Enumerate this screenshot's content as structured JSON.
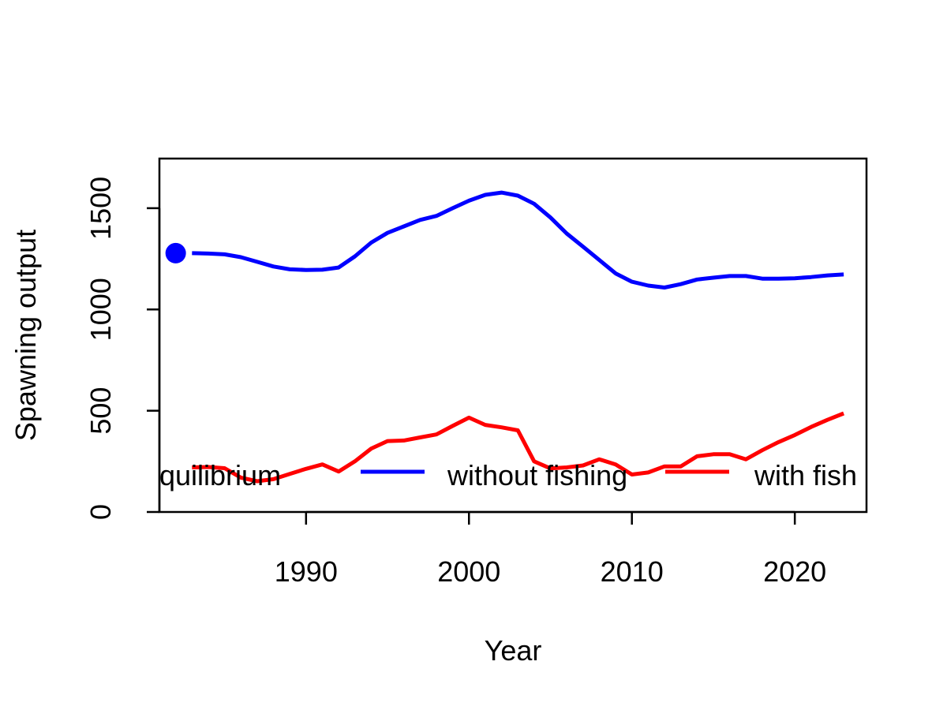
{
  "chart_data": {
    "type": "line",
    "title": "",
    "xlabel": "Year",
    "ylabel": "Spawning output",
    "xlim": [
      1981,
      2024.4
    ],
    "ylim": [
      0,
      1745
    ],
    "x_ticks": [
      1990,
      2000,
      2010,
      2020
    ],
    "y_ticks": [
      0,
      500,
      1000,
      1500
    ],
    "grid": false,
    "legend_position": "bottom",
    "series": [
      {
        "name": "without fishing",
        "color": "#0000FF",
        "x": [
          1983,
          1984,
          1985,
          1986,
          1987,
          1988,
          1989,
          1990,
          1991,
          1992,
          1993,
          1994,
          1995,
          1996,
          1997,
          1998,
          1999,
          2000,
          2001,
          2002,
          2003,
          2004,
          2005,
          2006,
          2007,
          2008,
          2009,
          2010,
          2011,
          2012,
          2013,
          2014,
          2015,
          2016,
          2017,
          2018,
          2019,
          2020,
          2021,
          2022,
          2023
        ],
        "values": [
          1278,
          1276,
          1272,
          1258,
          1235,
          1212,
          1198,
          1195,
          1196,
          1207,
          1262,
          1330,
          1378,
          1410,
          1442,
          1462,
          1500,
          1537,
          1566,
          1577,
          1562,
          1522,
          1454,
          1375,
          1310,
          1244,
          1178,
          1137,
          1118,
          1108,
          1125,
          1148,
          1157,
          1165,
          1165,
          1152,
          1152,
          1154,
          1160,
          1168,
          1173
        ]
      },
      {
        "name": "with fishing",
        "color": "#FF0000",
        "x": [
          1983,
          1984,
          1985,
          1986,
          1987,
          1988,
          1989,
          1990,
          1991,
          1992,
          1993,
          1994,
          1995,
          1996,
          1997,
          1998,
          1999,
          2000,
          2001,
          2002,
          2003,
          2004,
          2005,
          2006,
          2007,
          2008,
          2009,
          2010,
          2011,
          2012,
          2013,
          2014,
          2015,
          2016,
          2017,
          2018,
          2019,
          2020,
          2021,
          2022,
          2023
        ],
        "values": [
          220,
          222,
          216,
          170,
          152,
          162,
          188,
          213,
          235,
          200,
          250,
          313,
          350,
          353,
          368,
          383,
          425,
          466,
          430,
          418,
          403,
          250,
          215,
          220,
          230,
          260,
          235,
          185,
          195,
          225,
          225,
          275,
          285,
          285,
          260,
          305,
          345,
          380,
          420,
          455,
          487
        ]
      }
    ],
    "points": [
      {
        "name": "equilibrium",
        "color": "#0000FF",
        "x": 1982,
        "y": 1278
      }
    ],
    "legend": [
      {
        "label": "equilibrium",
        "color": "#0000FF",
        "visible_text": "quilibrium"
      },
      {
        "label": "without fishing",
        "color": "#0000FF",
        "visible_text": "without fishing"
      },
      {
        "label": "with fishing",
        "color": "#FF0000",
        "visible_text": "with fish"
      }
    ]
  }
}
